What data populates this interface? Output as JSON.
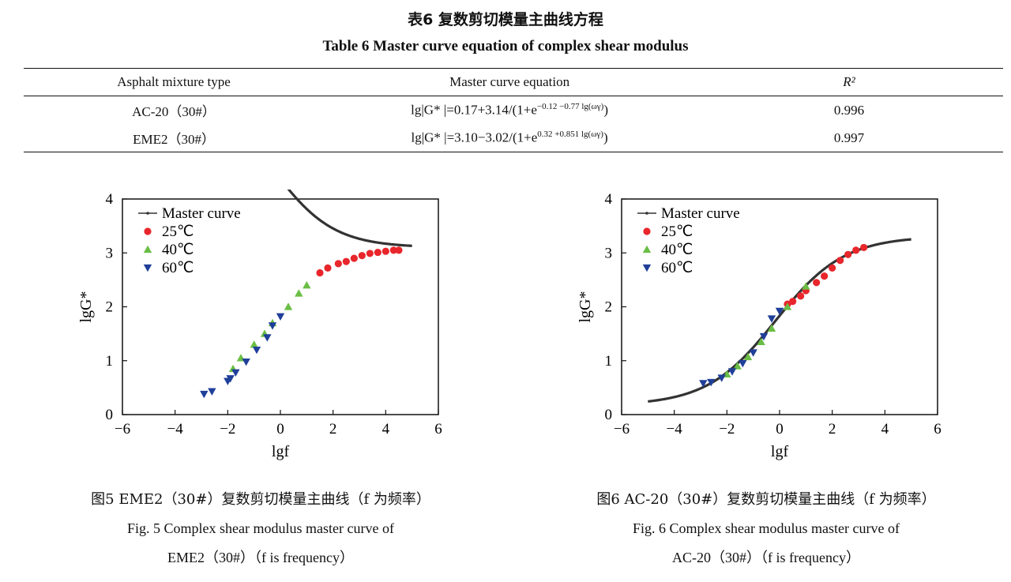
{
  "table": {
    "title_cn": "表6  复数剪切模量主曲线方程",
    "title_en": "Table 6   Master curve equation of complex shear modulus",
    "headers": [
      "Asphalt mixture type",
      "Master curve equation",
      "R²"
    ],
    "rows": [
      {
        "type": "AC-20（30#）",
        "eq_main": "lg|G* |=0.17+3.14/(1+e",
        "eq_exp": "−0.12 −0.77 lg(ωγ)",
        "eq_end": ")",
        "r2": "0.996"
      },
      {
        "type": "EME2（30#）",
        "eq_main": "lg|G* |=3.10−3.02/(1+e",
        "eq_exp": "0.32 +0.851 lg(ωγ)",
        "eq_end": ")",
        "r2": "0.997"
      }
    ]
  },
  "chart_data": [
    {
      "type": "scatter",
      "title": "",
      "xlabel": "lgf",
      "ylabel": "lgG*",
      "xlim": [
        -6,
        6
      ],
      "ylim": [
        0,
        4
      ],
      "xticks": [
        -6,
        -4,
        -2,
        0,
        2,
        4,
        6
      ],
      "yticks": [
        0,
        1,
        2,
        3,
        4
      ],
      "legend_position": "top-left",
      "master_curve": {
        "name": "Master curve",
        "a": 3.1,
        "b": 3.02,
        "c": 0.32,
        "d": 0.851,
        "x": [
          -5,
          5
        ],
        "color": "#333333"
      },
      "series": [
        {
          "name": "25℃",
          "marker": "circle",
          "color": "#e8262b",
          "x": [
            1.5,
            1.8,
            2.2,
            2.5,
            2.8,
            3.1,
            3.4,
            3.7,
            4.0,
            4.3,
            4.5
          ],
          "y": [
            2.63,
            2.72,
            2.8,
            2.84,
            2.9,
            2.95,
            2.99,
            3.01,
            3.03,
            3.05,
            3.05
          ]
        },
        {
          "name": "40℃",
          "marker": "triangle-up",
          "color": "#6abe45",
          "x": [
            -1.8,
            -1.5,
            -1.0,
            -0.6,
            -0.3,
            0.3,
            0.7,
            1.0
          ],
          "y": [
            0.85,
            1.05,
            1.3,
            1.5,
            1.7,
            2.0,
            2.25,
            2.4
          ]
        },
        {
          "name": "60℃",
          "marker": "triangle-down",
          "color": "#1f3f99",
          "x": [
            -2.9,
            -2.6,
            -2.0,
            -1.9,
            -1.7,
            -1.3,
            -0.9,
            -0.5,
            -0.3,
            0.0
          ],
          "y": [
            0.38,
            0.43,
            0.62,
            0.67,
            0.78,
            0.98,
            1.2,
            1.43,
            1.65,
            1.82
          ]
        }
      ]
    },
    {
      "type": "scatter",
      "title": "",
      "xlabel": "lgf",
      "ylabel": "lgG*",
      "xlim": [
        -6,
        6
      ],
      "ylim": [
        0,
        4
      ],
      "xticks": [
        -6,
        -4,
        -2,
        0,
        2,
        4,
        6
      ],
      "yticks": [
        0,
        1,
        2,
        3,
        4
      ],
      "legend_position": "top-left",
      "master_curve": {
        "name": "Master curve",
        "a": 0.17,
        "b": 3.14,
        "c": -0.12,
        "d": -0.77,
        "x": [
          -5,
          5
        ],
        "color": "#333333"
      },
      "series": [
        {
          "name": "25℃",
          "marker": "circle",
          "color": "#e8262b",
          "x": [
            0.3,
            0.5,
            0.8,
            1.0,
            1.4,
            1.7,
            2.0,
            2.3,
            2.6,
            2.9,
            3.2
          ],
          "y": [
            2.05,
            2.1,
            2.2,
            2.3,
            2.45,
            2.57,
            2.72,
            2.86,
            2.97,
            3.05,
            3.1
          ]
        },
        {
          "name": "40℃",
          "marker": "triangle-up",
          "color": "#6abe45",
          "x": [
            -2.0,
            -1.6,
            -1.2,
            -0.7,
            -0.3,
            0.3,
            1.0
          ],
          "y": [
            0.75,
            0.9,
            1.07,
            1.35,
            1.6,
            2.0,
            2.38
          ]
        },
        {
          "name": "60℃",
          "marker": "triangle-down",
          "color": "#1f3f99",
          "x": [
            -2.9,
            -2.6,
            -2.2,
            -1.8,
            -1.4,
            -1.0,
            -0.6,
            -0.3,
            0.0
          ],
          "y": [
            0.58,
            0.6,
            0.68,
            0.8,
            0.95,
            1.15,
            1.45,
            1.78,
            1.92
          ]
        }
      ]
    }
  ],
  "captions": {
    "fig5": {
      "cn": "图5   EME2（30#）复数剪切模量主曲线（f 为频率）",
      "en1": "Fig. 5   Complex shear modulus master curve of",
      "en2": "EME2（30#）（f is frequency）"
    },
    "fig6": {
      "cn": "图6   AC-20（30#）复数剪切模量主曲线（f 为频率）",
      "en1": "Fig. 6   Complex shear modulus master curve of",
      "en2": "AC-20（30#）（f is frequency）"
    }
  }
}
